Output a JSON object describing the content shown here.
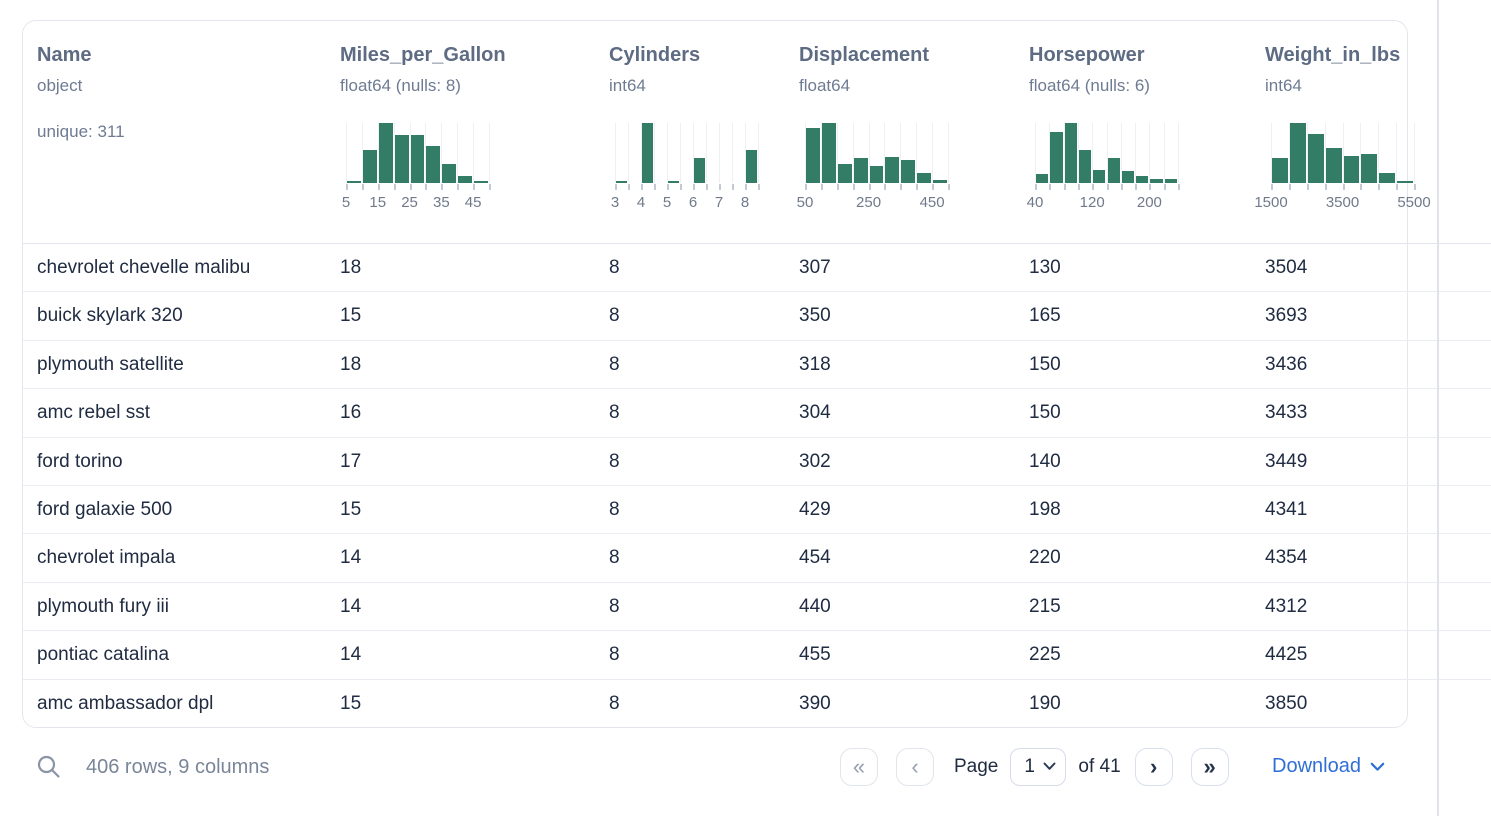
{
  "table": {
    "columns": [
      {
        "name": "Name",
        "type": "object",
        "extra": "unique: 311"
      },
      {
        "name": "Miles_per_Gallon",
        "type": "float64 (nulls: 8)",
        "histogram": {
          "bars": [
            3,
            55,
            100,
            80,
            80,
            61,
            31,
            11,
            3
          ],
          "ticks": [
            {
              "text": "5",
              "pos": 0
            },
            {
              "text": "15",
              "pos": 0.2222
            },
            {
              "text": "25",
              "pos": 0.4444
            },
            {
              "text": "35",
              "pos": 0.6667
            },
            {
              "text": "45",
              "pos": 0.8889
            }
          ]
        }
      },
      {
        "name": "Cylinders",
        "type": "int64",
        "histogram": {
          "bars": [
            4,
            0,
            100,
            0,
            3,
            0,
            42,
            0,
            0,
            0,
            55
          ],
          "ticks": [
            {
              "text": "3",
              "pos": 0
            },
            {
              "text": "4",
              "pos": 0.1818
            },
            {
              "text": "5",
              "pos": 0.3636
            },
            {
              "text": "6",
              "pos": 0.5455
            },
            {
              "text": "7",
              "pos": 0.7273
            },
            {
              "text": "8",
              "pos": 0.9091
            }
          ]
        }
      },
      {
        "name": "Displacement",
        "type": "float64",
        "histogram": {
          "bars": [
            92,
            100,
            32,
            41,
            28,
            43,
            39,
            17,
            5
          ],
          "ticks": [
            {
              "text": "50",
              "pos": 0
            },
            {
              "text": "250",
              "pos": 0.4444
            },
            {
              "text": "450",
              "pos": 0.8889
            }
          ]
        }
      },
      {
        "name": "Horsepower",
        "type": "float64 (nulls: 6)",
        "histogram": {
          "bars": [
            15,
            85,
            100,
            55,
            22,
            42,
            20,
            11,
            7,
            6
          ],
          "ticks": [
            {
              "text": "40",
              "pos": 0
            },
            {
              "text": "120",
              "pos": 0.4
            },
            {
              "text": "200",
              "pos": 0.8
            }
          ]
        }
      },
      {
        "name": "Weight_in_lbs",
        "type": "int64",
        "histogram": {
          "bars": [
            42,
            100,
            81,
            58,
            45,
            49,
            16,
            3
          ],
          "ticks": [
            {
              "text": "1500",
              "pos": 0
            },
            {
              "text": "3500",
              "pos": 0.5
            },
            {
              "text": "5500",
              "pos": 1
            }
          ]
        }
      }
    ],
    "rows": [
      [
        "chevrolet chevelle malibu",
        "18",
        "8",
        "307",
        "130",
        "3504"
      ],
      [
        "buick skylark 320",
        "15",
        "8",
        "350",
        "165",
        "3693"
      ],
      [
        "plymouth satellite",
        "18",
        "8",
        "318",
        "150",
        "3436"
      ],
      [
        "amc rebel sst",
        "16",
        "8",
        "304",
        "150",
        "3433"
      ],
      [
        "ford torino",
        "17",
        "8",
        "302",
        "140",
        "3449"
      ],
      [
        "ford galaxie 500",
        "15",
        "8",
        "429",
        "198",
        "4341"
      ],
      [
        "chevrolet impala",
        "14",
        "8",
        "454",
        "220",
        "4354"
      ],
      [
        "plymouth fury iii",
        "14",
        "8",
        "440",
        "215",
        "4312"
      ],
      [
        "pontiac catalina",
        "14",
        "8",
        "455",
        "225",
        "4425"
      ],
      [
        "amc ambassador dpl",
        "15",
        "8",
        "390",
        "190",
        "3850"
      ]
    ]
  },
  "footer": {
    "status": "406 rows, 9 columns",
    "pagination": {
      "first_icon": "«",
      "prev_icon": "‹",
      "page_label": "Page",
      "page_value": "1",
      "of_label": "of 41",
      "next_icon": "›",
      "last_icon": "»"
    },
    "download_label": "Download"
  },
  "colors": {
    "histogram_bar": "#337d66",
    "download_link": "#2f6fd6",
    "header_text": "#5d6b83",
    "cell_text": "#202c42"
  }
}
